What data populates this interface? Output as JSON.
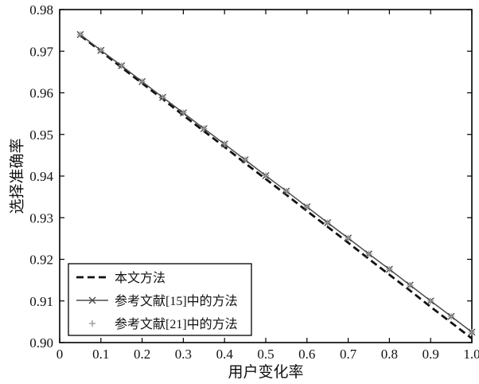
{
  "chart_data": {
    "type": "line",
    "title": "",
    "xlabel": "用户变化率",
    "ylabel": "选择准确率",
    "xlim": [
      0,
      1.0
    ],
    "ylim": [
      0.9,
      0.98
    ],
    "grid": false,
    "legend_position": "lower-left",
    "xticks": [
      0,
      0.1,
      0.2,
      0.3,
      0.4,
      0.5,
      0.6,
      0.7,
      0.8,
      0.9,
      1.0
    ],
    "xtick_labels": [
      "0",
      "0.1",
      "0.2",
      "0.3",
      "0.4",
      "0.5",
      "0.6",
      "0.7",
      "0.8",
      "0.9",
      "1.0"
    ],
    "yticks": [
      0.9,
      0.91,
      0.92,
      0.93,
      0.94,
      0.95,
      0.96,
      0.97,
      0.98
    ],
    "ytick_labels": [
      "0.90",
      "0.91",
      "0.92",
      "0.93",
      "0.94",
      "0.95",
      "0.96",
      "0.97",
      "0.98"
    ],
    "x": [
      0.05,
      0.1,
      0.15,
      0.2,
      0.25,
      0.3,
      0.35,
      0.4,
      0.45,
      0.5,
      0.55,
      0.6,
      0.65,
      0.7,
      0.75,
      0.8,
      0.85,
      0.9,
      0.95,
      1.0
    ],
    "series": [
      {
        "name": "本文方法",
        "line": "dashed",
        "marker": "none",
        "color": "#111111",
        "width": 2.8,
        "values": [
          0.9738,
          0.97,
          0.9661,
          0.9623,
          0.9585,
          0.9546,
          0.9508,
          0.947,
          0.9431,
          0.9393,
          0.9355,
          0.9316,
          0.9278,
          0.924,
          0.9201,
          0.9163,
          0.9125,
          0.9086,
          0.9048,
          0.901
        ]
      },
      {
        "name": "参考文献[15]中的方法",
        "line": "solid",
        "marker": "x",
        "color": "#4d4d4d",
        "width": 1.5,
        "values": [
          0.974,
          0.9702,
          0.9665,
          0.9627,
          0.9589,
          0.9552,
          0.9514,
          0.9477,
          0.9439,
          0.9401,
          0.9364,
          0.9326,
          0.9288,
          0.9251,
          0.9213,
          0.9176,
          0.9138,
          0.91,
          0.9063,
          0.9025
        ]
      },
      {
        "name": "参考文献[21]中的方法",
        "line": "none",
        "marker": "plus",
        "color": "#9a9a9a",
        "width": 1.4,
        "values": [
          0.974,
          0.9702,
          0.9665,
          0.9627,
          0.9589,
          0.9552,
          0.9514,
          0.9477,
          0.9439,
          0.9401,
          0.9364,
          0.9326,
          0.9288,
          0.9251,
          0.9213,
          0.9176,
          0.9138,
          0.91,
          0.9063,
          0.9025
        ]
      }
    ]
  }
}
